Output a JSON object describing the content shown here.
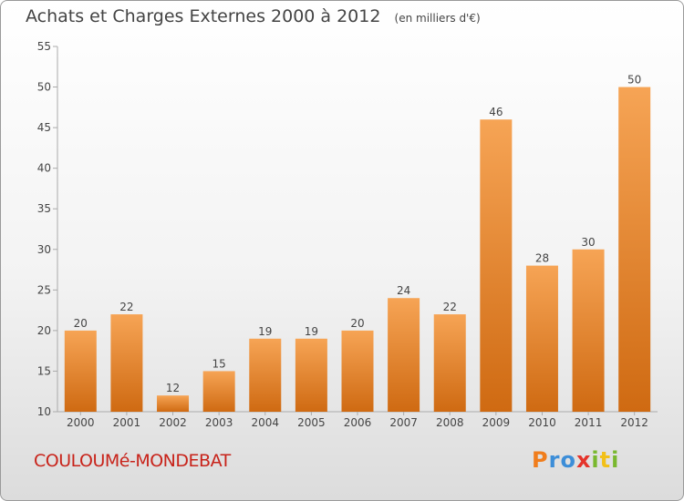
{
  "title": {
    "main": "Achats et Charges Externes 2000 à 2012",
    "unit": "(en milliers d'€)"
  },
  "commune": "COULOUMé-MONDEBAT",
  "logo": {
    "text": "Proxiti",
    "letter_colors": [
      "#f07d1c",
      "#3d8ed8",
      "#3d8ed8",
      "#e5332a",
      "#79b82e",
      "#f2c018",
      "#79b82e"
    ]
  },
  "colors": {
    "bar_top": "#f6a455",
    "bar_bottom": "#cf6a12",
    "title": "#444444",
    "commune": "#c8231a"
  },
  "chart_data": {
    "type": "bar",
    "categories": [
      "2000",
      "2001",
      "2002",
      "2003",
      "2004",
      "2005",
      "2006",
      "2007",
      "2008",
      "2009",
      "2010",
      "2011",
      "2012"
    ],
    "values": [
      20,
      22,
      12,
      15,
      19,
      19,
      20,
      24,
      22,
      46,
      28,
      30,
      50
    ],
    "ylim": [
      10,
      55
    ],
    "yticks": [
      10,
      15,
      20,
      25,
      30,
      35,
      40,
      45,
      50,
      55
    ],
    "grid": false,
    "legend": "none"
  }
}
